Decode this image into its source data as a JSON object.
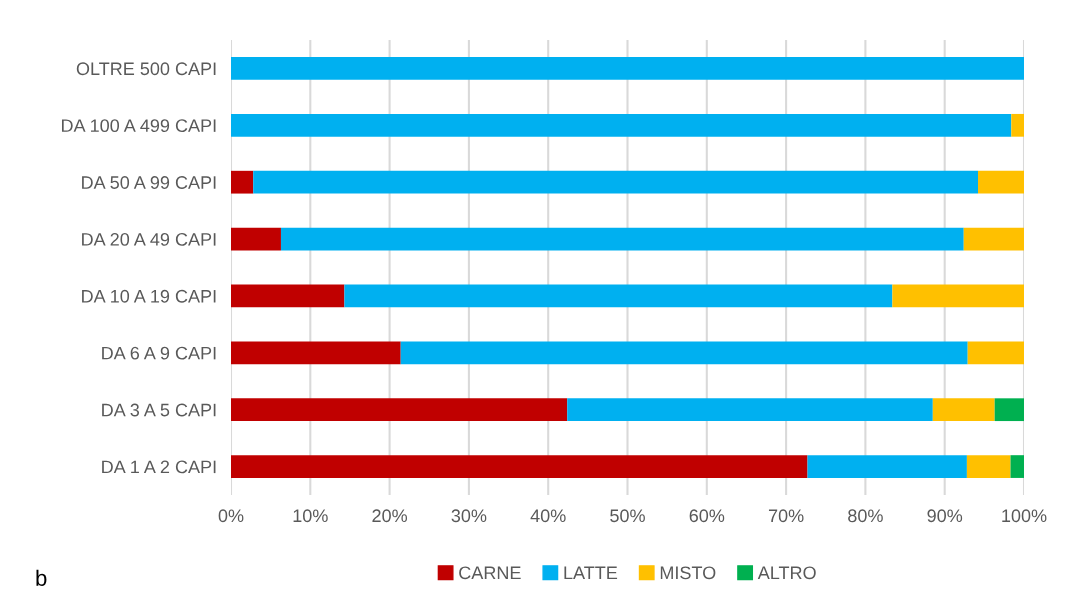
{
  "chart_data": {
    "type": "bar",
    "orientation": "horizontal",
    "stacked": true,
    "categories": [
      "OLTRE 500 CAPI",
      "DA 100 A 499 CAPI",
      "DA 50 A 99 CAPI",
      "DA 20 A 49 CAPI",
      "DA 10 A 19 CAPI",
      "DA 6 A 9 CAPI",
      "DA 3 A 5 CAPI",
      "DA 1 A 2 CAPI"
    ],
    "series": [
      {
        "name": "CARNE",
        "color": "#c00000",
        "values": [
          0,
          0,
          2.8,
          6.3,
          14.3,
          21.4,
          42.4,
          72.7
        ]
      },
      {
        "name": "LATTE",
        "color": "#00b0f0",
        "values": [
          100,
          98.4,
          91.4,
          86.1,
          69.1,
          71.5,
          46.1,
          20.1
        ]
      },
      {
        "name": "MISTO",
        "color": "#ffc000",
        "values": [
          0,
          1.6,
          5.8,
          7.6,
          16.6,
          7.1,
          7.8,
          5.5
        ]
      },
      {
        "name": "ALTRO",
        "color": "#00b050",
        "values": [
          0,
          0,
          0,
          0,
          0,
          0,
          3.7,
          1.7
        ]
      }
    ],
    "xlim": [
      0,
      100
    ],
    "xticks": [
      {
        "value": 0,
        "label": "0%"
      },
      {
        "value": 10,
        "label": "10%"
      },
      {
        "value": 20,
        "label": "20%"
      },
      {
        "value": 30,
        "label": "30%"
      },
      {
        "value": 40,
        "label": "40%"
      },
      {
        "value": 50,
        "label": "50%"
      },
      {
        "value": 60,
        "label": "60%"
      },
      {
        "value": 70,
        "label": "70%"
      },
      {
        "value": 80,
        "label": "80%"
      },
      {
        "value": 90,
        "label": "90%"
      },
      {
        "value": 100,
        "label": "100%"
      }
    ],
    "grid": "x",
    "legend": "bottom",
    "annotations": [
      "b"
    ]
  }
}
